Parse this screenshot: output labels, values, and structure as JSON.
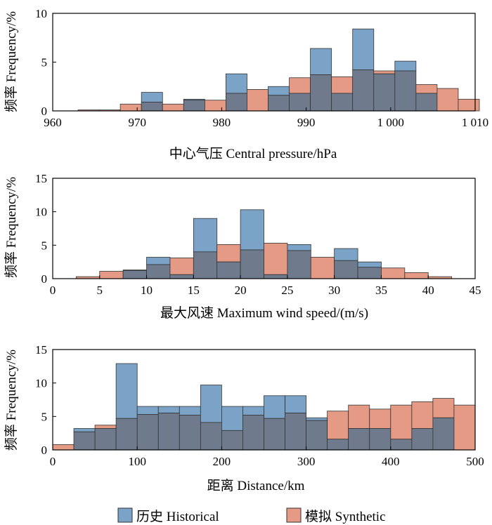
{
  "legend": {
    "historical": "历史 Historical",
    "synthetic": "模拟 Synthetic"
  },
  "colors": {
    "historical": "#7ba3c7",
    "synthetic": "#e59a85",
    "overlap": "#6f7b8d",
    "edge": "#333333"
  },
  "chart_data": [
    {
      "type": "bar",
      "title": "",
      "xlabel": "中心气压 Central pressure/hPa",
      "ylabel": "频率 Frequency/%",
      "xlim": [
        960,
        1010
      ],
      "ylim": [
        0,
        10
      ],
      "xticks": [
        960,
        970,
        980,
        990,
        1000,
        1010
      ],
      "xtick_labels": [
        "960",
        "970",
        "980",
        "990",
        "1 000",
        "1 010"
      ],
      "yticks": [
        0,
        5,
        10
      ],
      "ytick_labels": [
        "0",
        "5",
        "10"
      ],
      "bin_edges": [
        963,
        965.5,
        968,
        970.5,
        973,
        975.5,
        978,
        980.5,
        983,
        985.5,
        988,
        990.5,
        993,
        995.5,
        998,
        1000.5,
        1003,
        1005.5,
        1008,
        1010.5
      ],
      "series": [
        {
          "name": "历史 Historical",
          "values": [
            0,
            0,
            0,
            1.9,
            0,
            1.2,
            0,
            3.8,
            0,
            2.5,
            1.8,
            6.4,
            1.8,
            8.4,
            3.8,
            5.1,
            1.8,
            0,
            0
          ]
        },
        {
          "name": "模拟 Synthetic",
          "values": [
            0.1,
            0.1,
            0.7,
            0.9,
            0.7,
            1.1,
            1.1,
            1.8,
            2.2,
            1.6,
            3.4,
            3.7,
            3.5,
            4.2,
            4.1,
            4.1,
            2.7,
            2.3,
            1.2
          ]
        }
      ]
    },
    {
      "type": "bar",
      "title": "",
      "xlabel": "最大风速 Maximum wind speed/(m/s)",
      "ylabel": "频率 Frequency/%",
      "xlim": [
        0,
        45
      ],
      "ylim": [
        0,
        15
      ],
      "xticks": [
        0,
        5,
        10,
        15,
        20,
        25,
        30,
        35,
        40,
        45
      ],
      "xtick_labels": [
        "0",
        "5",
        "10",
        "15",
        "20",
        "25",
        "30",
        "35",
        "40",
        "45"
      ],
      "yticks": [
        0,
        5,
        10,
        15
      ],
      "ytick_labels": [
        "0",
        "5",
        "10",
        "15"
      ],
      "bin_edges": [
        2.5,
        5,
        7.5,
        10,
        12.5,
        15,
        17.5,
        20,
        22.5,
        25,
        27.5,
        30,
        32.5,
        35,
        37.5,
        40,
        42.5
      ],
      "series": [
        {
          "name": "历史 Historical",
          "values": [
            0,
            0,
            1.3,
            3.2,
            0.6,
            9.0,
            2.5,
            10.3,
            0.6,
            5.1,
            0,
            4.5,
            2.5,
            0,
            0,
            0
          ]
        },
        {
          "name": "模拟 Synthetic",
          "values": [
            0.3,
            1.1,
            1.2,
            2.1,
            3.1,
            4.0,
            5.1,
            4.3,
            5.3,
            4.2,
            3.2,
            2.7,
            1.7,
            1.6,
            0.9,
            0.3
          ]
        }
      ]
    },
    {
      "type": "bar",
      "title": "",
      "xlabel": "距离 Distance/km",
      "ylabel": "频率 Frequency/%",
      "xlim": [
        0,
        500
      ],
      "ylim": [
        0,
        15
      ],
      "xticks": [
        0,
        100,
        200,
        300,
        400,
        500
      ],
      "xtick_labels": [
        "0",
        "100",
        "200",
        "300",
        "400",
        "500"
      ],
      "yticks": [
        0,
        5,
        10,
        15
      ],
      "ytick_labels": [
        "0",
        "5",
        "10",
        "15"
      ],
      "bin_edges": [
        0,
        25,
        50,
        75,
        100,
        125,
        150,
        175,
        200,
        225,
        250,
        275,
        300,
        325,
        350,
        375,
        400,
        425,
        450,
        475,
        500
      ],
      "series": [
        {
          "name": "历史 Historical",
          "values": [
            0,
            3.2,
            3.2,
            12.9,
            6.5,
            6.5,
            6.5,
            9.7,
            6.5,
            6.5,
            8.1,
            8.1,
            4.8,
            1.6,
            3.2,
            3.2,
            1.6,
            3.2,
            4.8,
            0
          ]
        },
        {
          "name": "模拟 Synthetic",
          "values": [
            0.8,
            2.7,
            3.7,
            4.7,
            5.3,
            5.5,
            5.2,
            4.1,
            2.9,
            5.2,
            4.7,
            5.5,
            4.4,
            5.8,
            6.7,
            6.1,
            6.7,
            7.2,
            7.7,
            6.7
          ]
        }
      ]
    }
  ]
}
